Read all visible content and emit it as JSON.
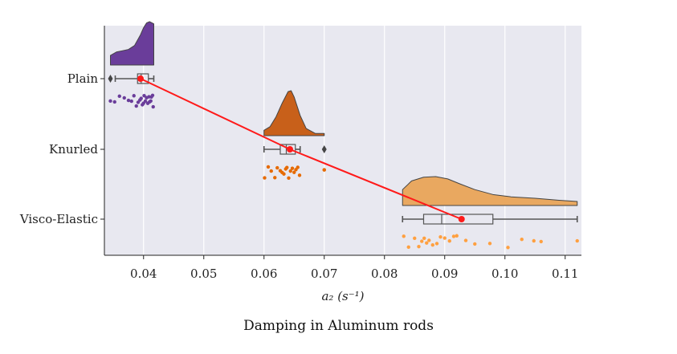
{
  "caption": "Damping in Aluminum rods",
  "chart_data": {
    "type": "raincloud",
    "xlabel": "a₂ (s⁻¹)",
    "xlim": [
      0.0335,
      0.1127
    ],
    "xticks": [
      0.04,
      0.05,
      0.06,
      0.07,
      0.08,
      0.09,
      0.1,
      0.11
    ],
    "xtick_labels": [
      "0.04",
      "0.05",
      "0.06",
      "0.07",
      "0.08",
      "0.09",
      "0.10",
      "0.11"
    ],
    "grid": true,
    "background_color": "#e8e8f0",
    "mean_line_color": "#ff1a1a",
    "categories": [
      "Plain",
      "Knurled",
      "Visco-Elastic"
    ],
    "series": [
      {
        "category": "Plain",
        "color": "#6a3d9a",
        "point_color": "#6a3d9a",
        "box": {
          "whisker_low": 0.0353,
          "q1": 0.039,
          "median": 0.0396,
          "q3": 0.0408,
          "whisker_high": 0.0417
        },
        "outliers": [
          0.0345
        ],
        "mean": 0.0395,
        "density": {
          "x": [
            0.0345,
            0.0355,
            0.0365,
            0.0375,
            0.0385,
            0.0395,
            0.04,
            0.0405,
            0.041,
            0.0417
          ],
          "y": [
            0.22,
            0.3,
            0.33,
            0.36,
            0.45,
            0.7,
            0.86,
            0.97,
            1.0,
            0.95
          ]
        },
        "points": [
          0.0345,
          0.0352,
          0.036,
          0.0368,
          0.0375,
          0.038,
          0.0384,
          0.0388,
          0.0391,
          0.0394,
          0.0396,
          0.0398,
          0.04,
          0.0401,
          0.0403,
          0.0405,
          0.0407,
          0.0409,
          0.041,
          0.0412,
          0.0413,
          0.0415,
          0.0416
        ]
      },
      {
        "category": "Knurled",
        "color": "#c8601a",
        "point_color": "#e66a00",
        "box": {
          "whisker_low": 0.06,
          "q1": 0.0627,
          "median": 0.0637,
          "q3": 0.0652,
          "whisker_high": 0.066
        },
        "outliers": [
          0.07
        ],
        "mean": 0.0643,
        "density": {
          "x": [
            0.06,
            0.061,
            0.062,
            0.063,
            0.064,
            0.0645,
            0.065,
            0.066,
            0.067,
            0.0685,
            0.07
          ],
          "y": [
            0.12,
            0.2,
            0.42,
            0.72,
            0.98,
            1.0,
            0.86,
            0.45,
            0.16,
            0.05,
            0.05
          ]
        },
        "points": [
          0.0601,
          0.0607,
          0.0612,
          0.0618,
          0.0622,
          0.0627,
          0.063,
          0.0633,
          0.0636,
          0.0638,
          0.0641,
          0.0644,
          0.0647,
          0.065,
          0.0653,
          0.0656,
          0.0659,
          0.07,
          0.07
        ]
      },
      {
        "category": "Visco-Elastic",
        "color": "#e9a860",
        "point_color": "#ffa040",
        "box": {
          "whisker_low": 0.083,
          "q1": 0.0865,
          "median": 0.0895,
          "q3": 0.098,
          "whisker_high": 0.112
        },
        "outliers": [],
        "mean": 0.0928,
        "density": {
          "x": [
            0.083,
            0.0845,
            0.0865,
            0.0885,
            0.0905,
            0.0925,
            0.095,
            0.098,
            0.101,
            0.105,
            0.109,
            0.112
          ],
          "y": [
            0.55,
            0.85,
            0.98,
            1.0,
            0.92,
            0.75,
            0.55,
            0.38,
            0.3,
            0.25,
            0.18,
            0.14
          ]
        },
        "points": [
          0.0832,
          0.084,
          0.085,
          0.0857,
          0.0862,
          0.0866,
          0.087,
          0.0874,
          0.088,
          0.0887,
          0.0893,
          0.09,
          0.0908,
          0.0915,
          0.092,
          0.0935,
          0.095,
          0.0975,
          0.1005,
          0.1028,
          0.1048,
          0.106,
          0.112
        ]
      }
    ]
  }
}
